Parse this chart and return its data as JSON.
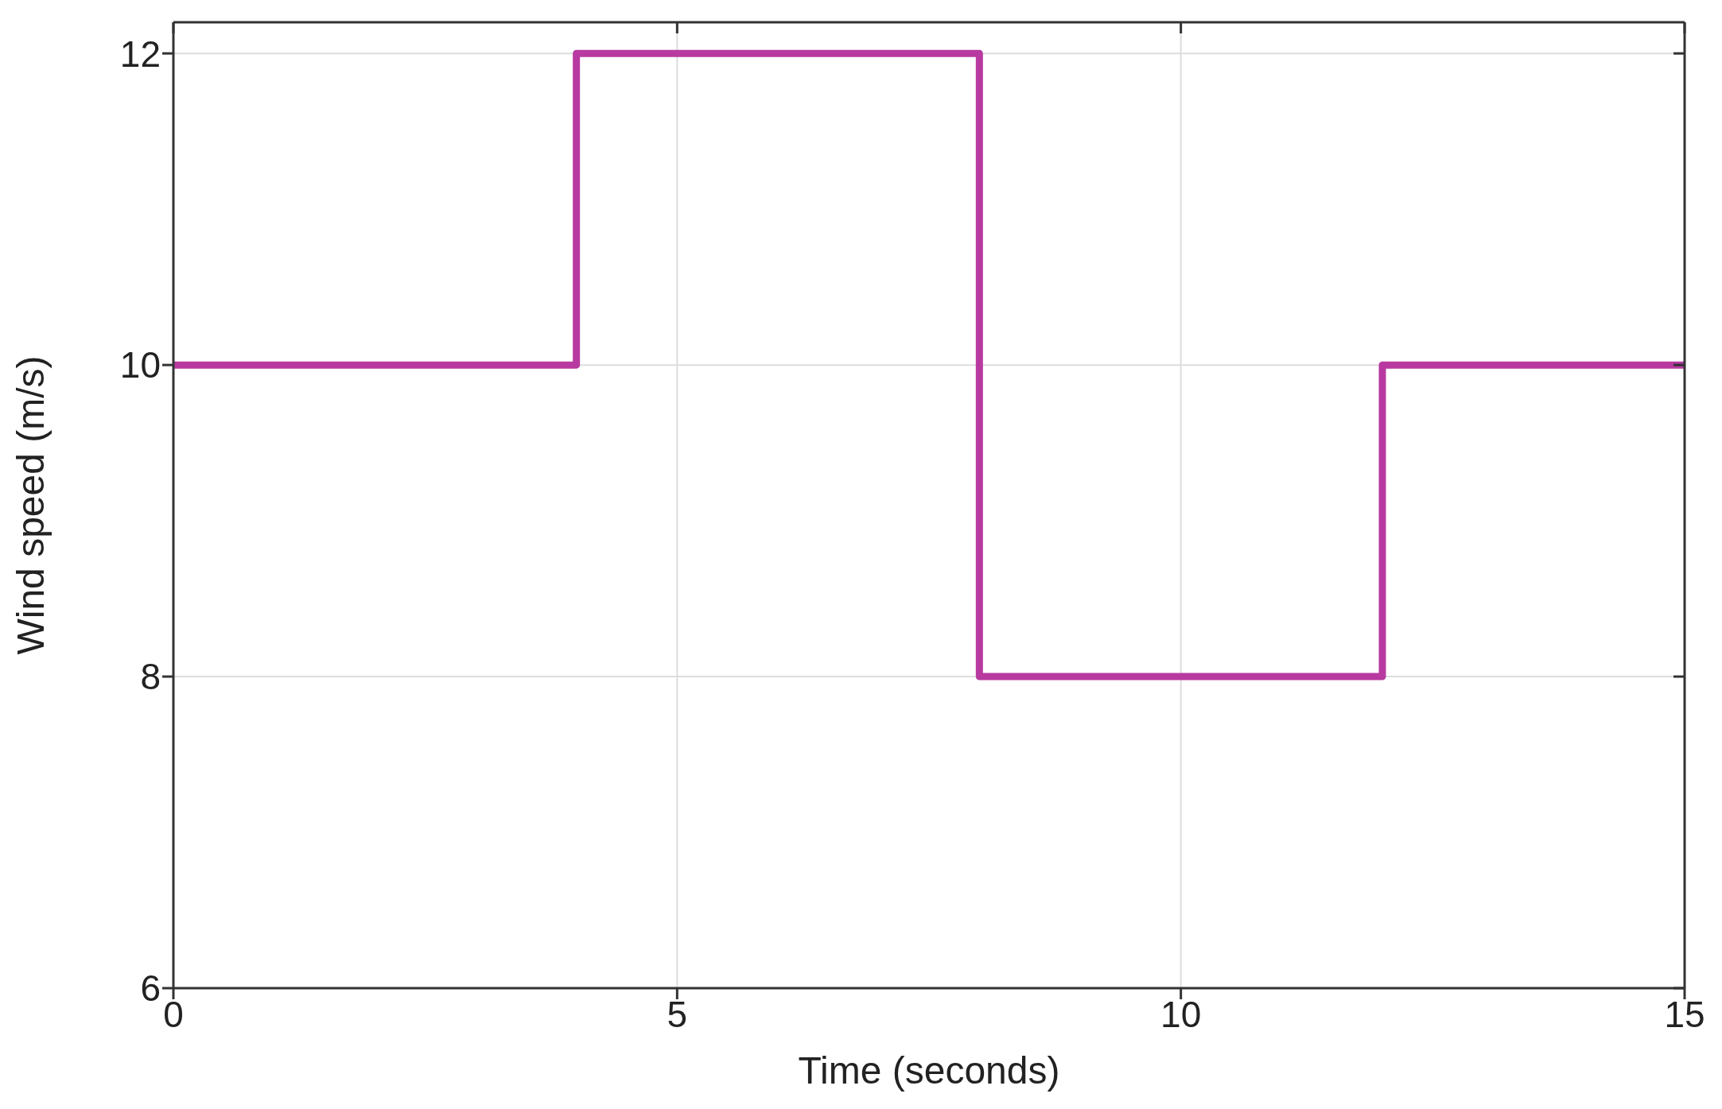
{
  "chart_data": {
    "type": "step",
    "xlabel": "Time (seconds)",
    "ylabel": "Wind speed (m/s)",
    "x": [
      0,
      4,
      8,
      12,
      15
    ],
    "series": [
      {
        "color": "#b83aa0",
        "values": [
          10,
          12,
          8,
          10,
          10
        ]
      }
    ],
    "xlim": [
      0,
      15
    ],
    "xticks": [
      0,
      5,
      10,
      15
    ],
    "ylim": [
      6,
      12.2
    ],
    "yticks": [
      6,
      8,
      10,
      12
    ],
    "grid": true,
    "marker": "none",
    "line_style": "solid"
  }
}
